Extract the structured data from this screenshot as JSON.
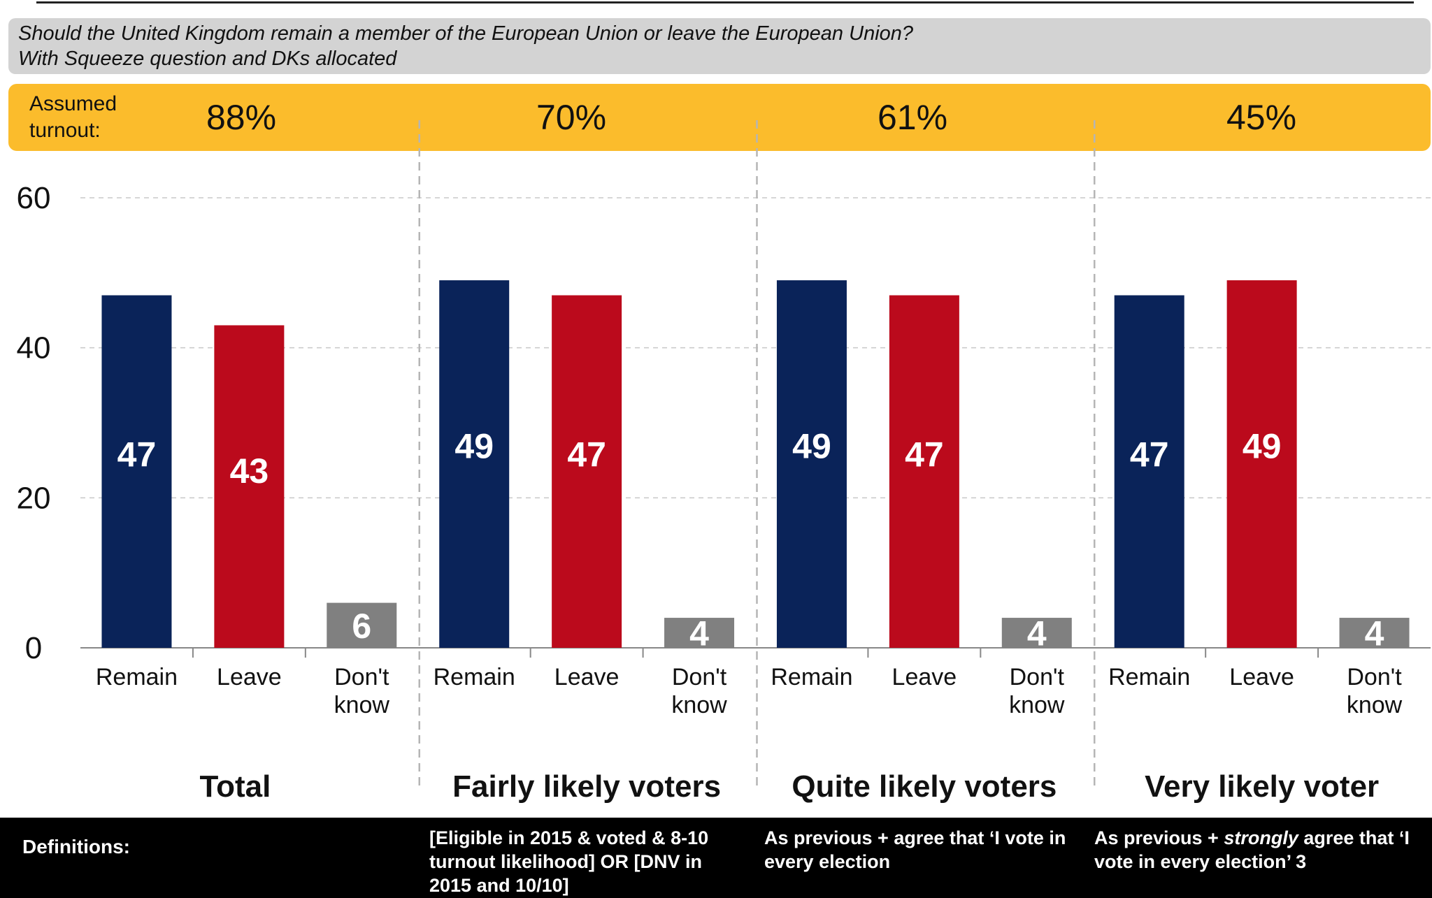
{
  "question": {
    "line1": "Should the United Kingdom remain a member of the European Union or leave the European Union?",
    "line2": "With Squeeze question and DKs allocated"
  },
  "turnout": {
    "label": "Assumed turnout:",
    "values": [
      "88%",
      "70%",
      "61%",
      "45%"
    ]
  },
  "colors": {
    "remain": "#0a2359",
    "leave": "#bb0a1c",
    "dont_know": "#808080",
    "turnout_band": "#fbbc2c",
    "question_band": "#d3d3d3"
  },
  "chart_data": {
    "type": "bar",
    "ylim": [
      0,
      60
    ],
    "yticks": [
      0,
      20,
      40,
      60
    ],
    "grid": true,
    "categories": [
      "Remain",
      "Leave",
      "Don't know"
    ],
    "groups": [
      {
        "name": "Total",
        "values": [
          47,
          43,
          6
        ]
      },
      {
        "name": "Fairly likely voters",
        "values": [
          49,
          47,
          4
        ]
      },
      {
        "name": "Quite likely voters",
        "values": [
          49,
          47,
          4
        ]
      },
      {
        "name": "Very likely voter",
        "values": [
          47,
          49,
          4
        ]
      }
    ]
  },
  "definitions": {
    "label": "Definitions:",
    "fairly": "[Eligible in 2015 & voted & 8-10 turnout likelihood] OR [DNV in 2015 and 10/10]",
    "quite": "As previous + agree that ‘I vote in every election",
    "very_prefix": "As previous + ",
    "very_emph": "strongly",
    "very_suffix": " agree that ‘I vote in every election’ 3"
  }
}
